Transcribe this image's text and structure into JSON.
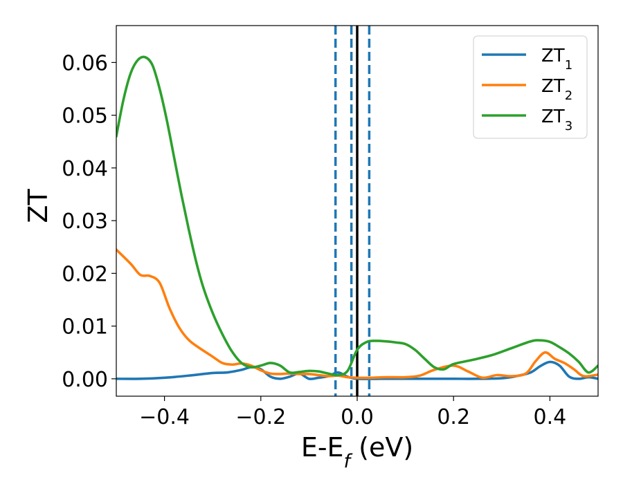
{
  "chart_data": {
    "type": "line",
    "title": "",
    "xlabel": "E-E",
    "xlabel_sub": "f",
    "xlabel_unit": " (eV)",
    "ylabel": "ZT",
    "xlim": [
      -0.5,
      0.5
    ],
    "ylim": [
      -0.0033,
      0.067
    ],
    "x_ticks": [
      -0.4,
      -0.2,
      0.0,
      0.2,
      0.4
    ],
    "x_tick_labels": [
      "−0.4",
      "−0.2",
      "0.0",
      "0.2",
      "0.4"
    ],
    "y_ticks": [
      0.0,
      0.01,
      0.02,
      0.03,
      0.04,
      0.05,
      0.06
    ],
    "y_tick_labels": [
      "0.00",
      "0.01",
      "0.02",
      "0.03",
      "0.04",
      "0.05",
      "0.06"
    ],
    "grid": false,
    "legend_position": "top-right",
    "vertical_lines": [
      {
        "x": -0.045,
        "style": "dashed",
        "color": "#1f77b4"
      },
      {
        "x": -0.012,
        "style": "dashed",
        "color": "#1f77b4"
      },
      {
        "x": 0.0,
        "style": "solid",
        "color": "#000000"
      },
      {
        "x": 0.025,
        "style": "dashed",
        "color": "#1f77b4"
      }
    ],
    "series": [
      {
        "name": "ZT",
        "name_sub": "1",
        "color": "#1f77b4",
        "x": [
          -0.5,
          -0.45,
          -0.4,
          -0.35,
          -0.3,
          -0.27,
          -0.24,
          -0.22,
          -0.2,
          -0.18,
          -0.16,
          -0.14,
          -0.12,
          -0.1,
          -0.08,
          -0.06,
          -0.04,
          -0.02,
          0.0,
          0.05,
          0.1,
          0.15,
          0.2,
          0.25,
          0.3,
          0.33,
          0.36,
          0.38,
          0.4,
          0.42,
          0.44,
          0.46,
          0.48,
          0.5
        ],
        "y": [
          0.0,
          0.0,
          0.0002,
          0.0006,
          0.0011,
          0.0012,
          0.0017,
          0.0022,
          0.0018,
          0.0004,
          0.0,
          0.0004,
          0.001,
          0.0,
          0.0002,
          0.0005,
          0.0012,
          0.0004,
          0.0,
          0.0,
          0.0,
          0.0,
          0.0,
          0.0,
          0.0001,
          0.0005,
          0.0012,
          0.0024,
          0.0032,
          0.0025,
          0.0004,
          0.0,
          0.0003,
          0.0
        ]
      },
      {
        "name": "ZT",
        "name_sub": "2",
        "color": "#ff7f0e",
        "x": [
          -0.5,
          -0.47,
          -0.45,
          -0.43,
          -0.41,
          -0.39,
          -0.37,
          -0.35,
          -0.33,
          -0.3,
          -0.28,
          -0.26,
          -0.24,
          -0.22,
          -0.2,
          -0.18,
          -0.16,
          -0.14,
          -0.12,
          -0.1,
          -0.08,
          -0.06,
          -0.04,
          -0.02,
          0.0,
          0.03,
          0.06,
          0.1,
          0.13,
          0.16,
          0.2,
          0.23,
          0.26,
          0.29,
          0.32,
          0.35,
          0.37,
          0.39,
          0.41,
          0.43,
          0.45,
          0.47,
          0.5
        ],
        "y": [
          0.0245,
          0.0218,
          0.0197,
          0.0195,
          0.0182,
          0.0135,
          0.0098,
          0.0074,
          0.006,
          0.0042,
          0.003,
          0.0027,
          0.0029,
          0.0025,
          0.0016,
          0.001,
          0.0009,
          0.001,
          0.0009,
          0.0009,
          0.0007,
          0.0005,
          0.0006,
          0.0003,
          0.0002,
          0.0002,
          0.0003,
          0.0003,
          0.0006,
          0.0017,
          0.0025,
          0.0014,
          0.0002,
          0.0007,
          0.0005,
          0.001,
          0.0033,
          0.005,
          0.0038,
          0.003,
          0.0018,
          0.0005,
          0.0008
        ]
      },
      {
        "name": "ZT",
        "name_sub": "3",
        "color": "#2ca02c",
        "x": [
          -0.5,
          -0.485,
          -0.47,
          -0.455,
          -0.44,
          -0.425,
          -0.41,
          -0.395,
          -0.38,
          -0.365,
          -0.35,
          -0.335,
          -0.32,
          -0.3,
          -0.28,
          -0.26,
          -0.24,
          -0.22,
          -0.2,
          -0.18,
          -0.16,
          -0.14,
          -0.12,
          -0.1,
          -0.08,
          -0.06,
          -0.04,
          -0.02,
          0.0,
          0.02,
          0.04,
          0.06,
          0.08,
          0.1,
          0.12,
          0.14,
          0.16,
          0.18,
          0.2,
          0.24,
          0.28,
          0.32,
          0.36,
          0.38,
          0.4,
          0.42,
          0.44,
          0.46,
          0.48,
          0.5
        ],
        "y": [
          0.046,
          0.053,
          0.058,
          0.0605,
          0.061,
          0.0595,
          0.055,
          0.049,
          0.042,
          0.035,
          0.0285,
          0.0225,
          0.0175,
          0.0125,
          0.0085,
          0.0052,
          0.003,
          0.0022,
          0.0025,
          0.003,
          0.0025,
          0.0012,
          0.0013,
          0.0015,
          0.0014,
          0.001,
          0.0007,
          0.0015,
          0.0055,
          0.007,
          0.0072,
          0.0071,
          0.0069,
          0.0066,
          0.0055,
          0.0038,
          0.0022,
          0.0018,
          0.0028,
          0.0036,
          0.0045,
          0.0058,
          0.0071,
          0.0073,
          0.007,
          0.006,
          0.0048,
          0.0032,
          0.0012,
          0.0025
        ]
      }
    ]
  }
}
